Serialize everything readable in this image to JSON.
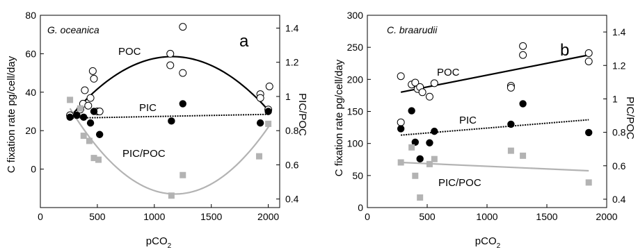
{
  "chart_data": [
    {
      "type": "scatter",
      "species": "G. oceanica",
      "panel_letter": "a",
      "xlabel": "pCO",
      "xlabel_sub": "2",
      "ylabel": "C fixation rate pg/cell/day",
      "ylabel_right": "PIC/POC",
      "xlim": [
        0,
        2100
      ],
      "ylim": [
        -20,
        80
      ],
      "ylim_right": [
        0.35,
        1.475
      ],
      "xticks": [
        0,
        500,
        1000,
        1500,
        2000
      ],
      "yticks": [
        0,
        20,
        40,
        60,
        80
      ],
      "yticks_right": [
        0.4,
        0.6,
        0.8,
        1.0,
        1.2,
        1.4
      ],
      "series": [
        {
          "name": "POC",
          "marker": "open-circle",
          "points": [
            [
              260,
              28
            ],
            [
              350,
              31
            ],
            [
              375,
              34
            ],
            [
              390,
              41
            ],
            [
              420,
              33
            ],
            [
              440,
              37
            ],
            [
              460,
              51
            ],
            [
              470,
              47
            ],
            [
              500,
              30
            ],
            [
              520,
              30
            ],
            [
              1140,
              60
            ],
            [
              1140,
              54
            ],
            [
              1250,
              74
            ],
            [
              1250,
              50
            ],
            [
              1930,
              39
            ],
            [
              1930,
              37
            ],
            [
              2000,
              31
            ],
            [
              2010,
              43
            ]
          ],
          "fit": {
            "type": "quadratic",
            "x": [
              260,
              1140,
              2010
            ],
            "y": [
              27,
              58.5,
              30
            ]
          }
        },
        {
          "name": "PIC",
          "marker": "filled-circle",
          "points": [
            [
              260,
              27
            ],
            [
              320,
              28
            ],
            [
              380,
              27
            ],
            [
              440,
              24
            ],
            [
              470,
              30
            ],
            [
              520,
              18
            ],
            [
              1150,
              25
            ],
            [
              1250,
              34
            ],
            [
              1930,
              24
            ],
            [
              2000,
              30
            ]
          ],
          "fit": {
            "type": "linear",
            "x": [
              260,
              2010
            ],
            "y": [
              26.5,
              28.5
            ]
          }
        },
        {
          "name": "PIC/POC",
          "axis": "right",
          "marker": "gray-square",
          "points": [
            [
              260,
              0.98
            ],
            [
              350,
              0.93
            ],
            [
              380,
              0.77
            ],
            [
              430,
              0.74
            ],
            [
              470,
              0.64
            ],
            [
              510,
              0.63
            ],
            [
              1150,
              0.42
            ],
            [
              1250,
              0.54
            ],
            [
              1920,
              0.65
            ],
            [
              2000,
              0.84
            ]
          ],
          "fit": {
            "type": "quadratic",
            "x": [
              260,
              1150,
              2010
            ],
            "y": [
              0.93,
              0.43,
              0.83
            ]
          }
        }
      ]
    },
    {
      "type": "scatter",
      "species": "C. braarudii",
      "panel_letter": "b",
      "xlabel": "pCO",
      "xlabel_sub": "2",
      "ylabel": "C fixation rate pg/cell/day",
      "ylabel_right": "PIC/POC",
      "xlim": [
        0,
        2000
      ],
      "ylim": [
        0,
        300
      ],
      "ylim_right": [
        0.35,
        1.5
      ],
      "xticks": [
        0,
        500,
        1000,
        1500,
        2000
      ],
      "yticks": [
        0,
        50,
        100,
        150,
        200,
        250,
        300
      ],
      "yticks_right": [
        0.4,
        0.6,
        0.8,
        1.0,
        1.2,
        1.4
      ],
      "series": [
        {
          "name": "POC",
          "marker": "open-circle",
          "points": [
            [
              280,
              205
            ],
            [
              280,
              133
            ],
            [
              370,
              192
            ],
            [
              400,
              195
            ],
            [
              420,
              185
            ],
            [
              440,
              188
            ],
            [
              460,
              180
            ],
            [
              520,
              173
            ],
            [
              560,
              194
            ],
            [
              1200,
              190
            ],
            [
              1200,
              187
            ],
            [
              1300,
              252
            ],
            [
              1300,
              238
            ],
            [
              1850,
              241
            ],
            [
              1850,
              228
            ]
          ],
          "fit": {
            "type": "linear",
            "x": [
              280,
              1850
            ],
            "y": [
              180,
              238
            ]
          }
        },
        {
          "name": "PIC",
          "marker": "filled-circle",
          "points": [
            [
              280,
              123
            ],
            [
              370,
              151
            ],
            [
              400,
              102
            ],
            [
              440,
              76
            ],
            [
              520,
              101
            ],
            [
              560,
              119
            ],
            [
              1200,
              130
            ],
            [
              1300,
              162
            ],
            [
              1850,
              117
            ]
          ],
          "fit": {
            "type": "linear",
            "x": [
              280,
              1850
            ],
            "y": [
              113,
              137
            ]
          }
        },
        {
          "name": "PIC/POC",
          "axis": "right",
          "marker": "gray-square",
          "points": [
            [
              280,
              0.62
            ],
            [
              370,
              0.71
            ],
            [
              400,
              0.54
            ],
            [
              440,
              0.41
            ],
            [
              520,
              0.61
            ],
            [
              560,
              0.64
            ],
            [
              1200,
              0.69
            ],
            [
              1300,
              0.66
            ],
            [
              1850,
              0.5
            ]
          ],
          "fit": {
            "type": "linear",
            "x": [
              280,
              1850
            ],
            "y": [
              0.62,
              0.57
            ]
          }
        }
      ]
    }
  ]
}
